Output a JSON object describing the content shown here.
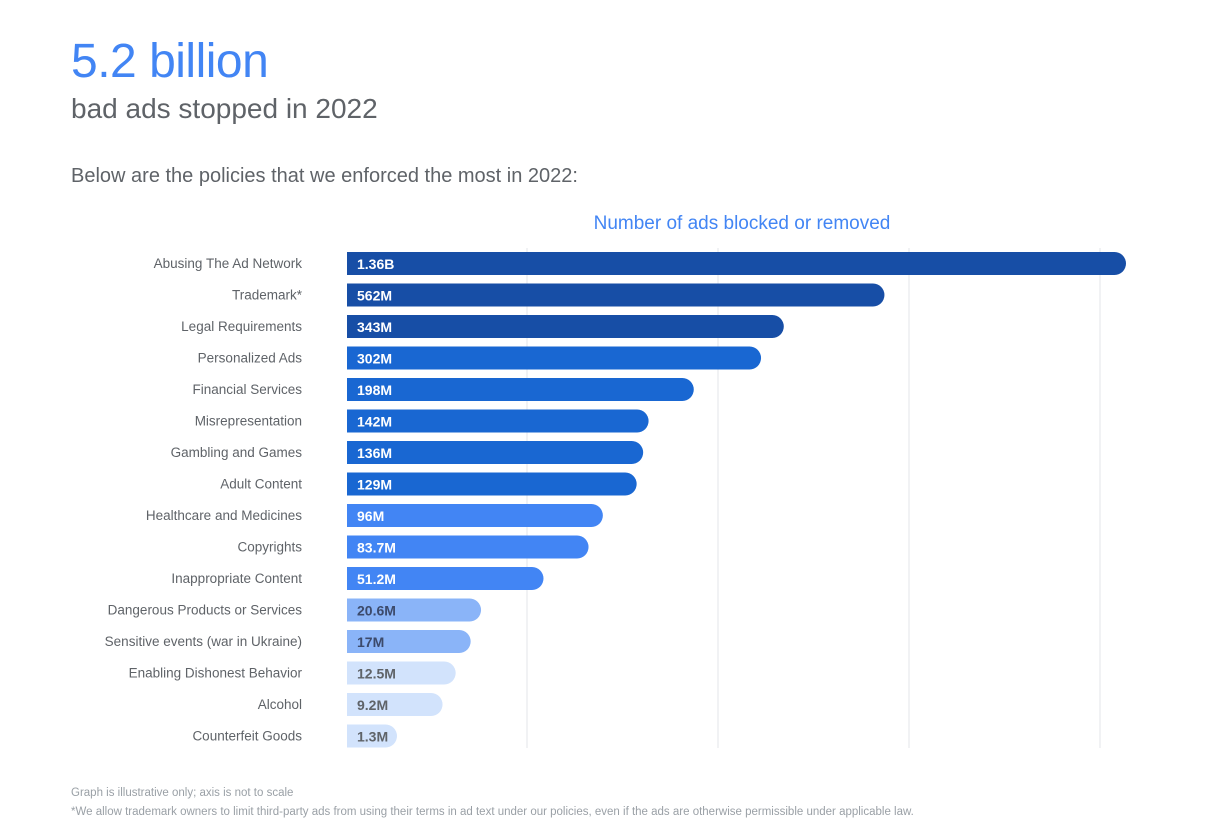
{
  "headline": "5.2 billion",
  "subheadline": "bad ads stopped in 2022",
  "intro": "Below are the policies that we enforced the most in 2022:",
  "footnotes": [
    "Graph is illustrative only; axis is not to scale",
    "*We allow trademark owners to limit third-party ads from using their terms in ad text under our policies, even if the ads are otherwise permissible under applicable law."
  ],
  "chart_data": {
    "type": "bar",
    "orientation": "horizontal",
    "title": "Number of ads blocked or removed",
    "xlabel": "",
    "ylabel": "",
    "grid": true,
    "scale_note": "axis is not to scale",
    "categories": [
      "Abusing The Ad Network",
      "Trademark*",
      "Legal Requirements",
      "Personalized Ads",
      "Financial Services",
      "Misrepresentation",
      "Gambling and Games",
      "Adult Content",
      "Healthcare and Medicines",
      "Copyrights",
      "Inappropriate Content",
      "Dangerous Products or Services",
      "Sensitive events (war in Ukraine)",
      "Enabling Dishonest Behavior",
      "Alcohol",
      "Counterfeit Goods"
    ],
    "values": [
      1360000000,
      562000000,
      343000000,
      302000000,
      198000000,
      142000000,
      136000000,
      129000000,
      96000000,
      83700000,
      51200000,
      20600000,
      17000000,
      12500000,
      9200000,
      1300000
    ],
    "value_labels": [
      "1.36B",
      "562M",
      "343M",
      "302M",
      "198M",
      "142M",
      "136M",
      "129M",
      "96M",
      "83.7M",
      "51.2M",
      "20.6M",
      "17M",
      "12.5M",
      "9.2M",
      "1.3M"
    ],
    "bar_colors": [
      "#174ea6",
      "#174ea6",
      "#174ea6",
      "#1967d2",
      "#1967d2",
      "#1967d2",
      "#1967d2",
      "#1967d2",
      "#4285f4",
      "#4285f4",
      "#4285f4",
      "#8ab4f8",
      "#8ab4f8",
      "#d2e3fc",
      "#d2e3fc",
      "#d2e3fc"
    ],
    "label_colors": [
      "#ffffff",
      "#ffffff",
      "#ffffff",
      "#ffffff",
      "#ffffff",
      "#ffffff",
      "#ffffff",
      "#ffffff",
      "#ffffff",
      "#ffffff",
      "#ffffff",
      "#3c4a6b",
      "#3c4a6b",
      "#5f6368",
      "#5f6368",
      "#5f6368"
    ]
  }
}
